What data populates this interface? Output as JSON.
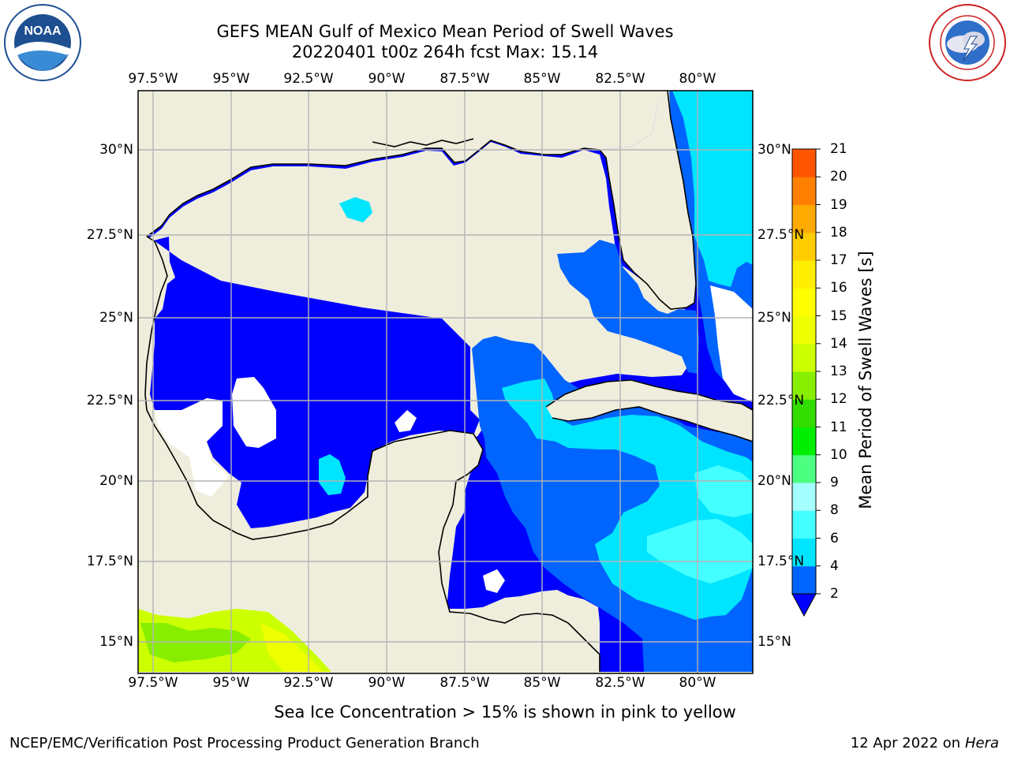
{
  "header": {
    "title_line1": "GEFS MEAN Gulf of Mexico Mean Period of Swell Waves",
    "title_line2": "20220401 t00z 264h fcst   Max: 15.14"
  },
  "map": {
    "lon_labels": [
      "97.5°W",
      "95°W",
      "92.5°W",
      "90°W",
      "87.5°W",
      "85°W",
      "82.5°W",
      "80°W"
    ],
    "lat_labels": [
      "30°N",
      "27.5°N",
      "25°N",
      "22.5°N",
      "20°N",
      "17.5°N",
      "15°N"
    ],
    "lon_range": [
      -98,
      -78.3
    ],
    "lat_range": [
      14,
      31.8
    ],
    "grid": true,
    "colors": {
      "land": "#efeedd",
      "no_data": "#ffffff",
      "coastline": "#000000",
      "gridline": "#b4b4b4"
    }
  },
  "colorbar": {
    "title": "Mean Period of Swell Waves [s]",
    "ticks": [
      "2",
      "4",
      "6",
      "8",
      "9",
      "10",
      "11",
      "12",
      "13",
      "14",
      "15",
      "16",
      "17",
      "18",
      "19",
      "20",
      "21"
    ],
    "colors": [
      "#0064ff",
      "#00e5ff",
      "#44ffff",
      "#a6ffff",
      "#4dff80",
      "#00ee00",
      "#33dd00",
      "#88ee00",
      "#ccff00",
      "#eeff00",
      "#ffff00",
      "#ffee00",
      "#ffcc00",
      "#ffaa00",
      "#ff8000",
      "#ff5500",
      "#ff2200",
      "#ff0000"
    ],
    "extend_color": "#0000ff"
  },
  "notes": {
    "ice": "Sea Ice Concentration > 15% is shown in pink to yellow",
    "footer_left": "NCEP/EMC/Verification Post Processing Product Generation Branch",
    "footer_right_date": "12 Apr 2022 on ",
    "footer_right_host": "Hera"
  },
  "logos": {
    "noaa_text": "NOAA",
    "noaa_ring": "NATIONAL OCEANIC AND ATMOSPHERIC ADMINISTRATION · U.S. DEPARTMENT OF COMMERCE",
    "nws_ring": "NATIONAL WEATHER SERVICE"
  }
}
